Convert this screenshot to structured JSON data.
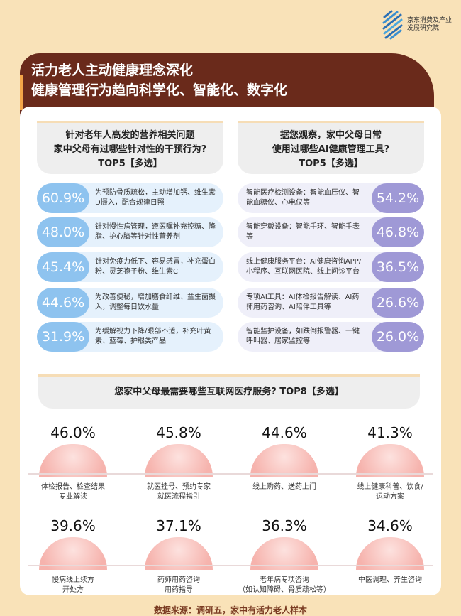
{
  "logo": {
    "text": "京东消费及产业发展研究院"
  },
  "banner": {
    "line1": "活力老人主动健康理念深化",
    "line2": "健康管理行为趋向科学化、智能化、数字化"
  },
  "left": {
    "q1": "针对老年人高发的营养相关问题",
    "q2": "家中父母有过哪些针对性的干预行为?",
    "q3": "TOP5【多选】",
    "items": [
      {
        "pct": "60.9%",
        "text": "为预防骨质疏松，主动增加钙、维生素D摄入，配合规律日照"
      },
      {
        "pct": "48.0%",
        "text": "针对慢性病管理，遵医嘱补充控糖、降脂、护心脑等针对性营养剂"
      },
      {
        "pct": "45.4%",
        "text": "针对免疫力低下、容易感冒，补充蛋白粉、灵芝孢子粉、维生素C"
      },
      {
        "pct": "44.6%",
        "text": "为改善便秘，增加膳食纤维、益生菌摄入，调整每日饮水量"
      },
      {
        "pct": "31.9%",
        "text": "为缓解视力下降/眼部不适，补充叶黄素、蓝莓、护眼类产品"
      }
    ]
  },
  "right": {
    "q1": "据您观察，家中父母日常",
    "q2": "使用过哪些AI健康管理工具?",
    "q3": "TOP5【多选】",
    "items": [
      {
        "pct": "54.2%",
        "text": "智能医疗检测设备：智能血压仪、智能血糖仪、心电仪等"
      },
      {
        "pct": "46.8%",
        "text": "智能穿戴设备：智能手环、智能手表等"
      },
      {
        "pct": "36.5%",
        "text": "线上健康服务平台：AI健康咨询APP/小程序、互联网医院、线上问诊平台"
      },
      {
        "pct": "26.6%",
        "text": "专项AI工具：AI体检报告解读、AI药师用药咨询、AI陪伴工具等"
      },
      {
        "pct": "26.0%",
        "text": "智能监护设备，如跌倒报警器、一键呼叫器、居家监控等"
      }
    ]
  },
  "services": {
    "q": "您家中父母最需要哪些互联网医疗服务? TOP8【多选】",
    "items": [
      {
        "pct": "46.0%",
        "l1": "体检报告、检查结果",
        "l2": "专业解读"
      },
      {
        "pct": "45.8%",
        "l1": "就医挂号、预约专家",
        "l2": "就医流程指引"
      },
      {
        "pct": "44.6%",
        "l1": "线上购药、送药上门",
        "l2": ""
      },
      {
        "pct": "41.3%",
        "l1": "线上健康科普、饮食/",
        "l2": "运动方案"
      },
      {
        "pct": "39.6%",
        "l1": "慢病线上续方",
        "l2": "开处方"
      },
      {
        "pct": "37.1%",
        "l1": "药师用药咨询",
        "l2": "用药指导"
      },
      {
        "pct": "36.3%",
        "l1": "老年病专项咨询",
        "l2": "（如认知障碍、骨质疏松等）"
      },
      {
        "pct": "34.6%",
        "l1": "中医调理、养生咨询",
        "l2": ""
      }
    ]
  },
  "source": "数据来源：调研五，家中有活力老人样本",
  "colors": {
    "background": "#f9e2b8",
    "banner": "#6a2a1b",
    "left_accent": "#8ec3ef",
    "right_accent": "#9f99d6",
    "dome": "#f6b3ad"
  }
}
